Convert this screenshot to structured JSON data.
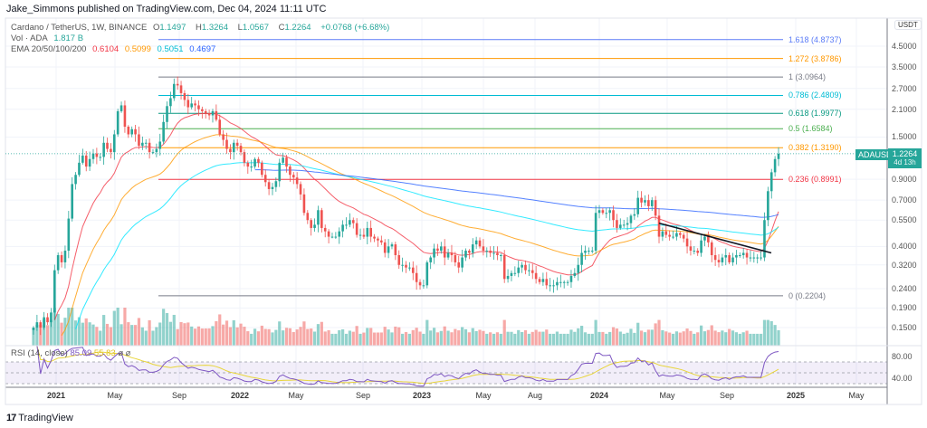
{
  "header": {
    "published": "Jake_Simmons published on TradingView.com, Dec 04, 2024 11:11 UTC"
  },
  "legend": {
    "symbol": "Cardano / TetherUS, 1W, BINANCE",
    "o_label": "O",
    "o": "1.1497",
    "h_label": "H",
    "h": "1.3264",
    "l_label": "L",
    "l": "1.0567",
    "c_label": "C",
    "c": "1.2264",
    "change": "+0.0768 (+6.68%)",
    "vol_label": "Vol · ADA",
    "vol": "1.817 B",
    "ema_label": "EMA 20/50/100/200",
    "ema_values": [
      "0.6104",
      "0.5099",
      "0.5051",
      "0.4697"
    ]
  },
  "colors": {
    "up": "#26a69a",
    "down": "#ef5350",
    "ema20": "#f23645",
    "ema50": "#ff9800",
    "ema100": "#00e5ff",
    "ema200": "#2962ff",
    "rsi": "#7e57c2",
    "rsi_ma": "#e8d53a",
    "trendline": "#131722"
  },
  "rsi": {
    "title": "RSI (14, close)",
    "value": "85.09",
    "ma_value": "55.83",
    "axis": [
      "80.00",
      "40.00"
    ]
  },
  "price_axis": {
    "unit": "USDT",
    "labels": [
      "4.5000",
      "3.5000",
      "2.7000",
      "2.1000",
      "1.5000",
      "0.9000",
      "0.7000",
      "0.5500",
      "0.4000",
      "0.3200",
      "0.2400",
      "0.1900",
      "0.1500"
    ]
  },
  "price_tag": {
    "symbol": "ADAUSDT",
    "price": "1.2264",
    "countdown": "4d 13h"
  },
  "time_axis": [
    "2021",
    "May",
    "Sep",
    "2022",
    "May",
    "Sep",
    "2023",
    "May",
    "Aug",
    "2024",
    "May",
    "Sep",
    "2025",
    "May"
  ],
  "fib_levels": [
    {
      "label": "1.618 (4.8737)",
      "price": 4.8737,
      "color": "#5b7cf7"
    },
    {
      "label": "1.272 (3.8786)",
      "price": 3.8786,
      "color": "#ff9800"
    },
    {
      "label": "1 (3.0964)",
      "price": 3.0964,
      "color": "#787b86"
    },
    {
      "label": "0.786 (2.4809)",
      "price": 2.4809,
      "color": "#00bcd4"
    },
    {
      "label": "0.618 (1.9977)",
      "price": 1.9977,
      "color": "#089981"
    },
    {
      "label": "0.5 (1.6584)",
      "price": 1.6584,
      "color": "#4caf50"
    },
    {
      "label": "0.382 (1.3190)",
      "price": 1.319,
      "color": "#ff9800"
    },
    {
      "label": "0.236 (0.8991)",
      "price": 0.8991,
      "color": "#f23645"
    },
    {
      "label": "0 (0.2204)",
      "price": 0.2204,
      "color": "#787b86"
    }
  ],
  "footer": {
    "brand": "TradingView"
  },
  "chart_data": {
    "type": "candlestick",
    "interval": "1W",
    "scale": "log",
    "ylim": [
      0.13,
      5.2
    ],
    "trendline": [
      {
        "date": "2024-04",
        "price": 0.53
      },
      {
        "date": "2024-11",
        "price": 0.37
      }
    ],
    "weekly_closes_from": "2020-11-23",
    "closes": [
      0.15,
      0.16,
      0.15,
      0.17,
      0.16,
      0.18,
      0.3,
      0.36,
      0.33,
      0.38,
      0.56,
      0.85,
      0.95,
      1.1,
      1.2,
      1.05,
      1.15,
      1.23,
      1.18,
      1.18,
      1.4,
      1.3,
      1.25,
      1.55,
      2.05,
      2.2,
      1.7,
      1.55,
      1.65,
      1.55,
      1.35,
      1.4,
      1.4,
      1.25,
      1.25,
      1.3,
      1.42,
      1.8,
      2.18,
      2.4,
      2.85,
      2.8,
      2.55,
      2.35,
      2.15,
      2.25,
      2.2,
      2.1,
      2.05,
      2.0,
      1.95,
      2.05,
      1.85,
      1.55,
      1.45,
      1.3,
      1.25,
      1.4,
      1.35,
      1.25,
      1.1,
      1.05,
      1.05,
      1.15,
      1.1,
      0.95,
      0.87,
      0.8,
      0.82,
      0.88,
      1.1,
      1.17,
      1.05,
      0.95,
      0.92,
      0.85,
      0.75,
      0.6,
      0.55,
      0.5,
      0.52,
      0.62,
      0.5,
      0.48,
      0.45,
      0.45,
      0.45,
      0.48,
      0.52,
      0.52,
      0.55,
      0.53,
      0.46,
      0.46,
      0.45,
      0.5,
      0.45,
      0.44,
      0.43,
      0.42,
      0.37,
      0.4,
      0.41,
      0.36,
      0.32,
      0.32,
      0.31,
      0.31,
      0.29,
      0.26,
      0.25,
      0.25,
      0.33,
      0.35,
      0.39,
      0.38,
      0.4,
      0.35,
      0.37,
      0.36,
      0.33,
      0.31,
      0.35,
      0.38,
      0.37,
      0.41,
      0.43,
      0.4,
      0.38,
      0.38,
      0.37,
      0.37,
      0.36,
      0.36,
      0.27,
      0.28,
      0.29,
      0.29,
      0.31,
      0.32,
      0.3,
      0.3,
      0.29,
      0.27,
      0.26,
      0.27,
      0.25,
      0.25,
      0.25,
      0.26,
      0.26,
      0.26,
      0.26,
      0.28,
      0.29,
      0.32,
      0.37,
      0.38,
      0.38,
      0.38,
      0.6,
      0.62,
      0.6,
      0.6,
      0.62,
      0.55,
      0.5,
      0.52,
      0.52,
      0.53,
      0.58,
      0.59,
      0.72,
      0.68,
      0.7,
      0.65,
      0.7,
      0.58,
      0.45,
      0.48,
      0.46,
      0.45,
      0.45,
      0.47,
      0.46,
      0.44,
      0.4,
      0.38,
      0.38,
      0.37,
      0.43,
      0.45,
      0.42,
      0.36,
      0.34,
      0.33,
      0.35,
      0.36,
      0.33,
      0.35,
      0.36,
      0.36,
      0.37,
      0.35,
      0.35,
      0.35,
      0.35,
      0.35,
      0.55,
      0.78,
      0.98,
      1.1497,
      1.2264
    ],
    "last_candle": {
      "open": 1.1497,
      "high": 1.3264,
      "low": 1.0567,
      "close": 1.2264
    }
  }
}
